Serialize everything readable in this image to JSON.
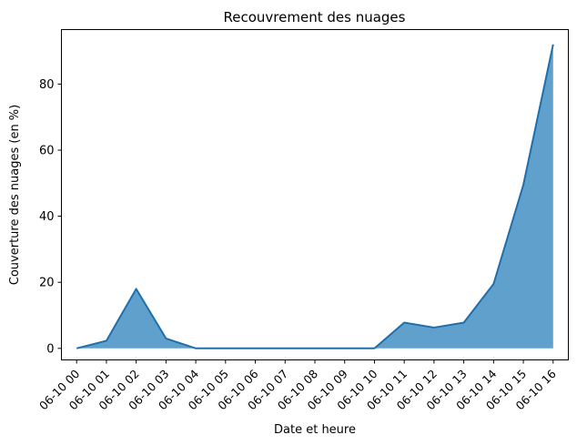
{
  "chart_data": {
    "type": "area",
    "title": "Recouvrement des nuages",
    "xlabel": "Date et heure",
    "ylabel": "Couverture des nuages (en %)",
    "categories": [
      "06-10 00",
      "06-10 01",
      "06-10 02",
      "06-10 03",
      "06-10 04",
      "06-10 05",
      "06-10 06",
      "06-10 07",
      "06-10 08",
      "06-10 09",
      "06-10 10",
      "06-10 11",
      "06-10 12",
      "06-10 13",
      "06-10 14",
      "06-10 15",
      "06-10 16"
    ],
    "values": [
      0,
      2.3,
      18,
      3,
      0,
      0,
      0,
      0,
      0,
      0,
      0,
      7.8,
      6.3,
      7.8,
      19.5,
      49.5,
      92
    ],
    "ylim": [
      -3.5,
      96.5
    ],
    "yticks": [
      0,
      20,
      40,
      60,
      80
    ],
    "grid": false,
    "colors": {
      "fill": "#5fa0cd",
      "line": "#1f6fab"
    }
  }
}
